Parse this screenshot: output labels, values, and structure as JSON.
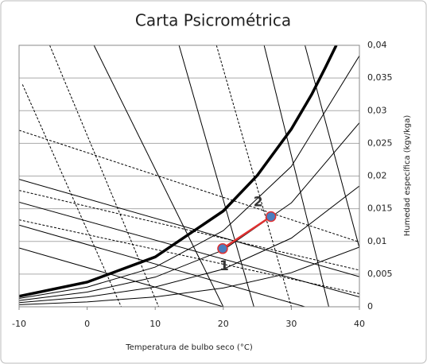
{
  "chart_data": {
    "type": "line",
    "title": "Carta Psicrométrica",
    "xlabel": "Temperatura de bulbo seco (°C)",
    "ylabel": "Humedad específica (kgv/kga)",
    "xlim": [
      -10,
      40
    ],
    "xticks": [
      -10,
      0,
      10,
      20,
      30,
      40
    ],
    "ylim": [
      0,
      0.04
    ],
    "yticks": [
      0,
      {
        "value": 0.005,
        "label": "0,005"
      },
      {
        "value": 0.01,
        "label": "0,01"
      },
      {
        "value": 0.015,
        "label": "0,015"
      },
      {
        "value": 0.02,
        "label": "0,02"
      },
      {
        "value": 0.025,
        "label": "0,025"
      },
      {
        "value": 0.03,
        "label": "0,03"
      },
      {
        "value": 0.035,
        "label": "0,035"
      },
      {
        "value": 0.04,
        "label": "0,04"
      }
    ],
    "y_axis_side": "right",
    "grid": true,
    "series": [
      {
        "color": "#000000",
        "width": 3.5,
        "dash": false,
        "x": [
          -10,
          0,
          10,
          20,
          25,
          30,
          33,
          35,
          36.6
        ],
        "values": [
          0.0016,
          0.00377,
          0.00762,
          0.01465,
          0.0201,
          0.02718,
          0.0325,
          0.0366,
          0.04
        ]
      },
      {
        "color": "#000000",
        "width": 1,
        "dash": false,
        "x": [
          -10,
          0,
          10,
          20,
          30,
          40
        ],
        "values": [
          0.00128,
          0.00301,
          0.00607,
          0.01165,
          0.02147,
          0.0384
        ]
      },
      {
        "color": "#000000",
        "width": 1,
        "dash": false,
        "x": [
          -10,
          0,
          10,
          20,
          30,
          40
        ],
        "values": [
          0.00096,
          0.00225,
          0.00454,
          0.00868,
          0.01589,
          0.02815
        ]
      },
      {
        "color": "#000000",
        "width": 1,
        "dash": false,
        "x": [
          -10,
          0,
          10,
          20,
          30,
          40
        ],
        "values": [
          0.00064,
          0.0015,
          0.00302,
          0.00576,
          0.0105,
          0.01848
        ]
      },
      {
        "color": "#000000",
        "width": 1,
        "dash": false,
        "x": [
          -10,
          0,
          10,
          20,
          30,
          40
        ],
        "values": [
          0.00032,
          0.00075,
          0.00151,
          0.00287,
          0.00522,
          0.00912
        ]
      },
      {
        "color": "#000000",
        "width": 1,
        "dash": true,
        "x": [
          -10,
          40
        ],
        "values": [
          0.027,
          0.0099
        ]
      },
      {
        "color": "#000000",
        "width": 1,
        "dash": true,
        "x": [
          -10,
          40
        ],
        "values": [
          0.0178,
          0.0056
        ]
      },
      {
        "color": "#000000",
        "width": 1,
        "dash": true,
        "x": [
          -10,
          40
        ],
        "values": [
          0.0133,
          0.002
        ]
      },
      {
        "color": "#000000",
        "width": 1,
        "dash": false,
        "x": [
          -10,
          40
        ],
        "values": [
          0.0195,
          0.0046
        ]
      },
      {
        "color": "#000000",
        "width": 1,
        "dash": false,
        "x": [
          -10,
          40
        ],
        "values": [
          0.016,
          0.0015
        ]
      },
      {
        "color": "#000000",
        "width": 1,
        "dash": false,
        "x": [
          -10,
          32
        ],
        "values": [
          0.0125,
          0
        ]
      },
      {
        "color": "#000000",
        "width": 1,
        "dash": false,
        "x": [
          -10,
          20
        ],
        "values": [
          0.009,
          0
        ]
      },
      {
        "color": "#000000",
        "width": 1,
        "dash": true,
        "x": [
          -9.5,
          5
        ],
        "values": [
          0.034,
          0
        ]
      },
      {
        "color": "#000000",
        "width": 1,
        "dash": true,
        "x": [
          -5.5,
          10.5
        ],
        "values": [
          0.04,
          0
        ]
      },
      {
        "color": "#000000",
        "width": 1,
        "dash": false,
        "x": [
          1,
          20
        ],
        "values": [
          0.04,
          0
        ]
      },
      {
        "color": "#000000",
        "width": 1,
        "dash": false,
        "x": [
          13.5,
          24.5
        ],
        "values": [
          0.04,
          0
        ]
      },
      {
        "color": "#000000",
        "width": 1,
        "dash": true,
        "x": [
          19,
          30
        ],
        "values": [
          0.04,
          0
        ]
      },
      {
        "color": "#000000",
        "width": 1,
        "dash": false,
        "x": [
          26,
          35.5
        ],
        "values": [
          0.04,
          0
        ]
      },
      {
        "color": "#000000",
        "width": 1,
        "dash": false,
        "x": [
          32,
          40
        ],
        "values": [
          0.04,
          0.009
        ]
      }
    ],
    "process": {
      "color": "#e03030",
      "marker_color": "#4a7ebf",
      "x": [
        19.9,
        27
      ],
      "values": [
        0.0089,
        0.0138
      ],
      "labels": [
        "1",
        "2"
      ]
    }
  }
}
